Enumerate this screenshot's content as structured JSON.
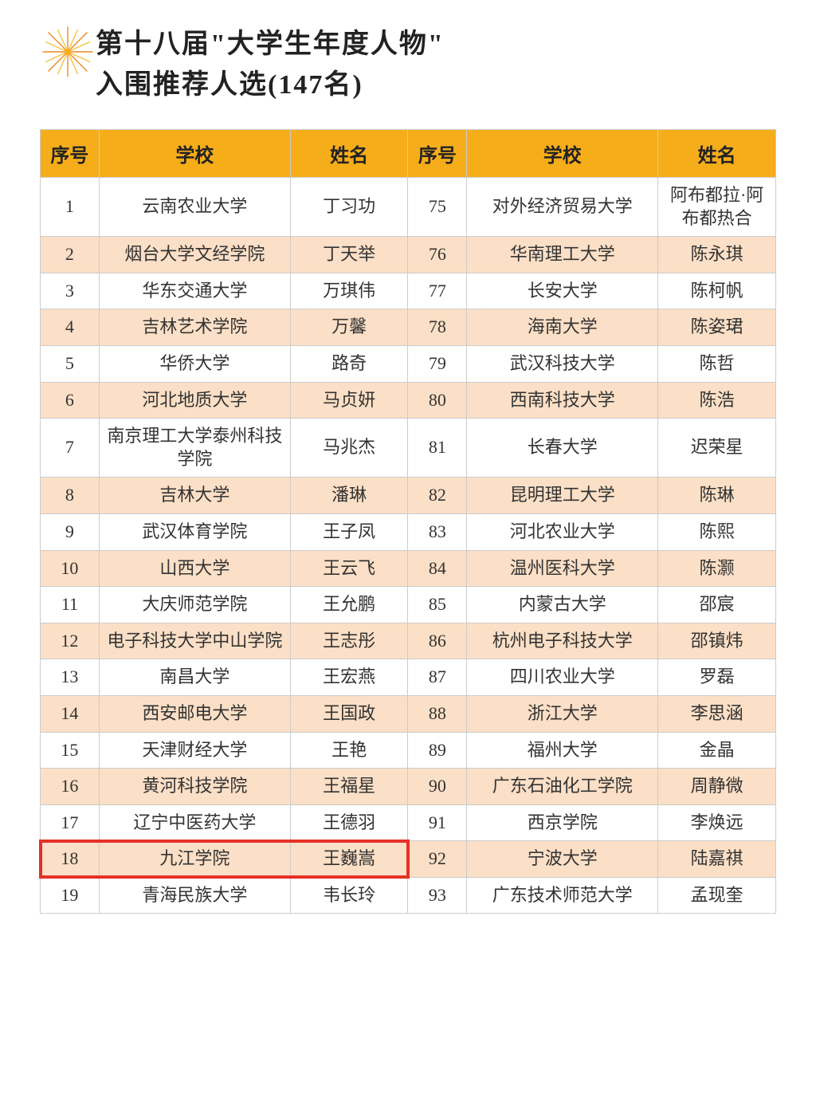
{
  "title_line1": "第十八届\"大学生年度人物\"",
  "title_line2": "入围推荐人选(147名)",
  "columns": {
    "seq": "序号",
    "school": "学校",
    "name": "姓名"
  },
  "colors": {
    "header_bg": "#f6ad1a",
    "row_even_bg": "#fbdfc6",
    "row_odd_bg": "#ffffff",
    "border": "#cccccc",
    "highlight": "#e53027",
    "text": "#333333"
  },
  "highlight_row_seq": 18,
  "rows": [
    {
      "l_seq": "1",
      "l_school": "云南农业大学",
      "l_name": "丁习功",
      "r_seq": "75",
      "r_school": "对外经济贸易大学",
      "r_name": "阿布都拉·阿布都热合"
    },
    {
      "l_seq": "2",
      "l_school": "烟台大学文经学院",
      "l_name": "丁天举",
      "r_seq": "76",
      "r_school": "华南理工大学",
      "r_name": "陈永琪"
    },
    {
      "l_seq": "3",
      "l_school": "华东交通大学",
      "l_name": "万琪伟",
      "r_seq": "77",
      "r_school": "长安大学",
      "r_name": "陈柯帆"
    },
    {
      "l_seq": "4",
      "l_school": "吉林艺术学院",
      "l_name": "万馨",
      "r_seq": "78",
      "r_school": "海南大学",
      "r_name": "陈姿珺"
    },
    {
      "l_seq": "5",
      "l_school": "华侨大学",
      "l_name": "路奇",
      "r_seq": "79",
      "r_school": "武汉科技大学",
      "r_name": "陈哲"
    },
    {
      "l_seq": "6",
      "l_school": "河北地质大学",
      "l_name": "马贞妍",
      "r_seq": "80",
      "r_school": "西南科技大学",
      "r_name": "陈浩"
    },
    {
      "l_seq": "7",
      "l_school": "南京理工大学泰州科技学院",
      "l_name": "马兆杰",
      "r_seq": "81",
      "r_school": "长春大学",
      "r_name": "迟荣星"
    },
    {
      "l_seq": "8",
      "l_school": "吉林大学",
      "l_name": "潘琳",
      "r_seq": "82",
      "r_school": "昆明理工大学",
      "r_name": "陈琳"
    },
    {
      "l_seq": "9",
      "l_school": "武汉体育学院",
      "l_name": "王子凤",
      "r_seq": "83",
      "r_school": "河北农业大学",
      "r_name": "陈熙"
    },
    {
      "l_seq": "10",
      "l_school": "山西大学",
      "l_name": "王云飞",
      "r_seq": "84",
      "r_school": "温州医科大学",
      "r_name": "陈灏"
    },
    {
      "l_seq": "11",
      "l_school": "大庆师范学院",
      "l_name": "王允鹏",
      "r_seq": "85",
      "r_school": "内蒙古大学",
      "r_name": "邵宸"
    },
    {
      "l_seq": "12",
      "l_school": "电子科技大学中山学院",
      "l_name": "王志彤",
      "r_seq": "86",
      "r_school": "杭州电子科技大学",
      "r_name": "邵镇炜"
    },
    {
      "l_seq": "13",
      "l_school": "南昌大学",
      "l_name": "王宏燕",
      "r_seq": "87",
      "r_school": "四川农业大学",
      "r_name": "罗磊"
    },
    {
      "l_seq": "14",
      "l_school": "西安邮电大学",
      "l_name": "王国政",
      "r_seq": "88",
      "r_school": "浙江大学",
      "r_name": "李思涵"
    },
    {
      "l_seq": "15",
      "l_school": "天津财经大学",
      "l_name": "王艳",
      "r_seq": "89",
      "r_school": "福州大学",
      "r_name": "金晶"
    },
    {
      "l_seq": "16",
      "l_school": "黄河科技学院",
      "l_name": "王福星",
      "r_seq": "90",
      "r_school": "广东石油化工学院",
      "r_name": "周静微"
    },
    {
      "l_seq": "17",
      "l_school": "辽宁中医药大学",
      "l_name": "王德羽",
      "r_seq": "91",
      "r_school": "西京学院",
      "r_name": "李焕远"
    },
    {
      "l_seq": "18",
      "l_school": "九江学院",
      "l_name": "王巍嵩",
      "r_seq": "92",
      "r_school": "宁波大学",
      "r_name": "陆嘉祺"
    },
    {
      "l_seq": "19",
      "l_school": "青海民族大学",
      "l_name": "韦长玲",
      "r_seq": "93",
      "r_school": "广东技术师范大学",
      "r_name": "孟现奎"
    }
  ]
}
